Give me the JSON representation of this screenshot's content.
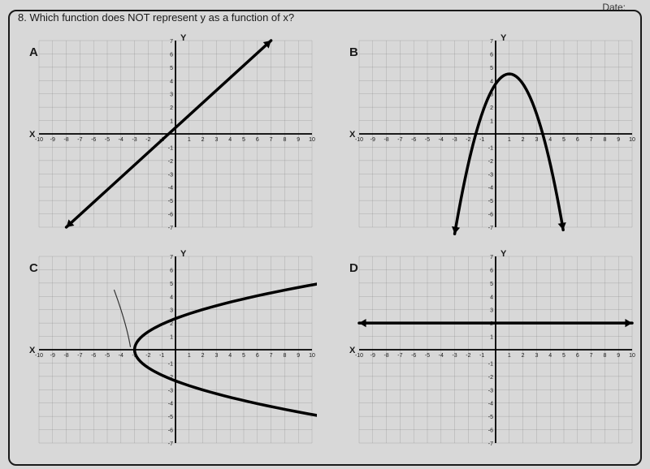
{
  "header": {
    "date_label": "Date:"
  },
  "question": {
    "number": "8.",
    "text": "Which function does NOT represent y as a function of x?"
  },
  "axes": {
    "x_label": "X",
    "y_label": "Y",
    "x_min": -10,
    "x_max": 10,
    "y_min": -7,
    "y_max": 7,
    "x_ticks": [
      "-10",
      "-9",
      "-8",
      "-7",
      "-6",
      "-5",
      "-4",
      "-3",
      "-2",
      "-1",
      "1",
      "2",
      "3",
      "4",
      "5",
      "6",
      "7",
      "8",
      "9",
      "10"
    ],
    "y_ticks": [
      "-7",
      "-6",
      "-5",
      "-4",
      "-3",
      "-2",
      "-1",
      "1",
      "2",
      "3",
      "4",
      "5",
      "6",
      "7"
    ]
  },
  "colors": {
    "page_bg": "#d8d8d8",
    "grid": "#6a6a6a",
    "axis": "#000000",
    "curve": "#000000",
    "text": "#1a1a1a",
    "frame": "#1a1a1a"
  },
  "graphs": {
    "A": {
      "label": "A",
      "type": "line",
      "description": "linear increasing line with arrows",
      "points": [
        [
          -8,
          -7
        ],
        [
          7,
          7
        ]
      ],
      "arrows": true
    },
    "B": {
      "label": "B",
      "type": "parabola",
      "description": "downward parabola",
      "vertex": [
        1,
        4.5
      ],
      "a": -0.75,
      "x_range": [
        -3,
        5
      ],
      "arrows": true
    },
    "C": {
      "label": "C",
      "type": "sideways-parabola",
      "description": "rightward opening parabola (not a function)",
      "vertex_x": -3,
      "vertex_y": 0,
      "a": 0.55,
      "y_range": [
        -6,
        6
      ],
      "arrows": true,
      "has_stray_arc": true
    },
    "D": {
      "label": "D",
      "type": "horizontal-line",
      "description": "horizontal line at y=2",
      "y": 2,
      "x_range": [
        -10,
        10
      ],
      "arrows": true
    }
  }
}
